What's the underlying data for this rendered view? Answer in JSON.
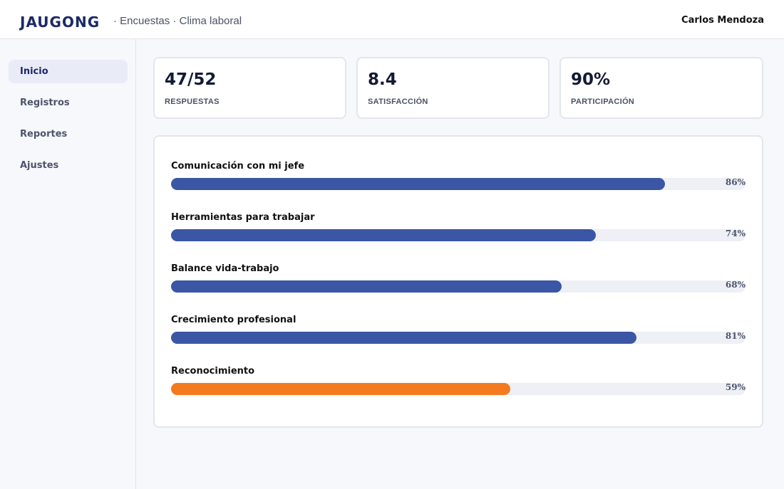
{
  "header": {
    "brand": "JAUGONG",
    "breadcrumb": "· Encuestas · Clima laboral",
    "user": "Carlos Mendoza"
  },
  "sidebar": {
    "items": [
      {
        "label": "Inicio",
        "active": true
      },
      {
        "label": "Registros",
        "active": false
      },
      {
        "label": "Reportes",
        "active": false
      },
      {
        "label": "Ajustes",
        "active": false
      }
    ]
  },
  "stats": [
    {
      "value": "47/52",
      "label": "RESPUESTAS"
    },
    {
      "value": "8.4",
      "label": "SATISFACCIÓN"
    },
    {
      "value": "90%",
      "label": "PARTICIPACIÓN"
    }
  ],
  "results": [
    {
      "label": "Comunicación con mi jefe",
      "percent": 86,
      "percent_text": "86%",
      "color": "#3b56a4"
    },
    {
      "label": "Herramientas para trabajar",
      "percent": 74,
      "percent_text": "74%",
      "color": "#3b56a4"
    },
    {
      "label": "Balance vida-trabajo",
      "percent": 68,
      "percent_text": "68%",
      "color": "#3b56a4"
    },
    {
      "label": "Crecimiento profesional",
      "percent": 81,
      "percent_text": "81%",
      "color": "#3b56a4"
    },
    {
      "label": "Reconocimiento",
      "percent": 59,
      "percent_text": "59%",
      "color": "#f47a1f"
    }
  ]
}
